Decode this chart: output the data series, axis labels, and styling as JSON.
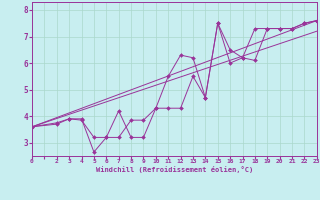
{
  "background_color": "#c8eef0",
  "grid_color": "#aad8cc",
  "line_color": "#993399",
  "marker_style": "D",
  "marker_size": 2.0,
  "xlabel": "Windchill (Refroidissement éolien,°C)",
  "xlim": [
    0,
    23
  ],
  "ylim": [
    2.5,
    8.3
  ],
  "yticks": [
    3,
    4,
    5,
    6,
    7,
    8
  ],
  "xtick_labels": [
    "0",
    "",
    "2",
    "3",
    "4",
    "5",
    "6",
    "7",
    "8",
    "9",
    "10",
    "11",
    "12",
    "13",
    "14",
    "15",
    "16",
    "17",
    "18",
    "19",
    "20",
    "21",
    "22",
    "23"
  ],
  "series": [
    {
      "x": [
        0,
        2,
        3,
        4,
        5,
        6,
        7,
        8,
        9,
        10,
        11,
        12,
        13,
        14,
        15,
        16,
        17,
        18,
        19,
        20,
        21,
        22,
        23
      ],
      "y": [
        3.6,
        3.7,
        3.9,
        3.85,
        3.2,
        3.2,
        4.2,
        3.2,
        3.2,
        4.3,
        5.5,
        6.3,
        6.2,
        4.7,
        7.5,
        6.5,
        6.2,
        6.1,
        7.3,
        7.3,
        7.3,
        7.5,
        7.6
      ]
    },
    {
      "x": [
        0,
        2,
        3,
        4,
        5,
        6,
        7,
        8,
        9,
        10,
        11,
        12,
        13,
        14,
        15,
        16,
        17,
        18,
        19,
        20,
        21,
        22,
        23
      ],
      "y": [
        3.6,
        3.75,
        3.9,
        3.9,
        2.65,
        3.2,
        3.2,
        3.85,
        3.85,
        4.3,
        4.3,
        4.3,
        5.5,
        4.7,
        7.5,
        6.0,
        6.2,
        7.3,
        7.3,
        7.3,
        7.3,
        7.5,
        7.6
      ]
    },
    {
      "x": [
        0,
        23
      ],
      "y": [
        3.6,
        7.6
      ]
    },
    {
      "x": [
        0,
        23
      ],
      "y": [
        3.6,
        7.2
      ]
    }
  ]
}
